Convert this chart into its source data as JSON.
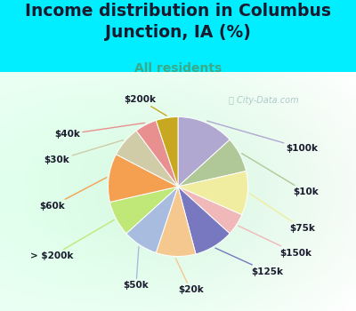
{
  "title": "Income distribution in Columbus\nJunction, IA (%)",
  "subtitle": "All residents",
  "watermark": "ⓘ City-Data.com",
  "slices": [
    {
      "label": "$100k",
      "value": 13,
      "color": "#b0a8d0"
    },
    {
      "label": "$10k",
      "value": 8,
      "color": "#b0c898"
    },
    {
      "label": "$75k",
      "value": 10,
      "color": "#f0eda0"
    },
    {
      "label": "$150k",
      "value": 5,
      "color": "#f0b8b8"
    },
    {
      "label": "$125k",
      "value": 9,
      "color": "#7878c0"
    },
    {
      "label": "$20k",
      "value": 9,
      "color": "#f5c890"
    },
    {
      "label": "$50k",
      "value": 8,
      "color": "#a8bce0"
    },
    {
      "label": "> $200k",
      "value": 8,
      "color": "#c0e878"
    },
    {
      "label": "$60k",
      "value": 11,
      "color": "#f5a050"
    },
    {
      "label": "$30k",
      "value": 7,
      "color": "#d0cca8"
    },
    {
      "label": "$40k",
      "value": 5,
      "color": "#e89090"
    },
    {
      "label": "$200k",
      "value": 5,
      "color": "#c8a820"
    }
  ],
  "bg_cyan": "#00eeff",
  "title_color": "#1a1a2e",
  "subtitle_color": "#3aaa88",
  "label_fontsize": 8.5,
  "title_fontsize": 13.5,
  "subtitle_fontsize": 10
}
